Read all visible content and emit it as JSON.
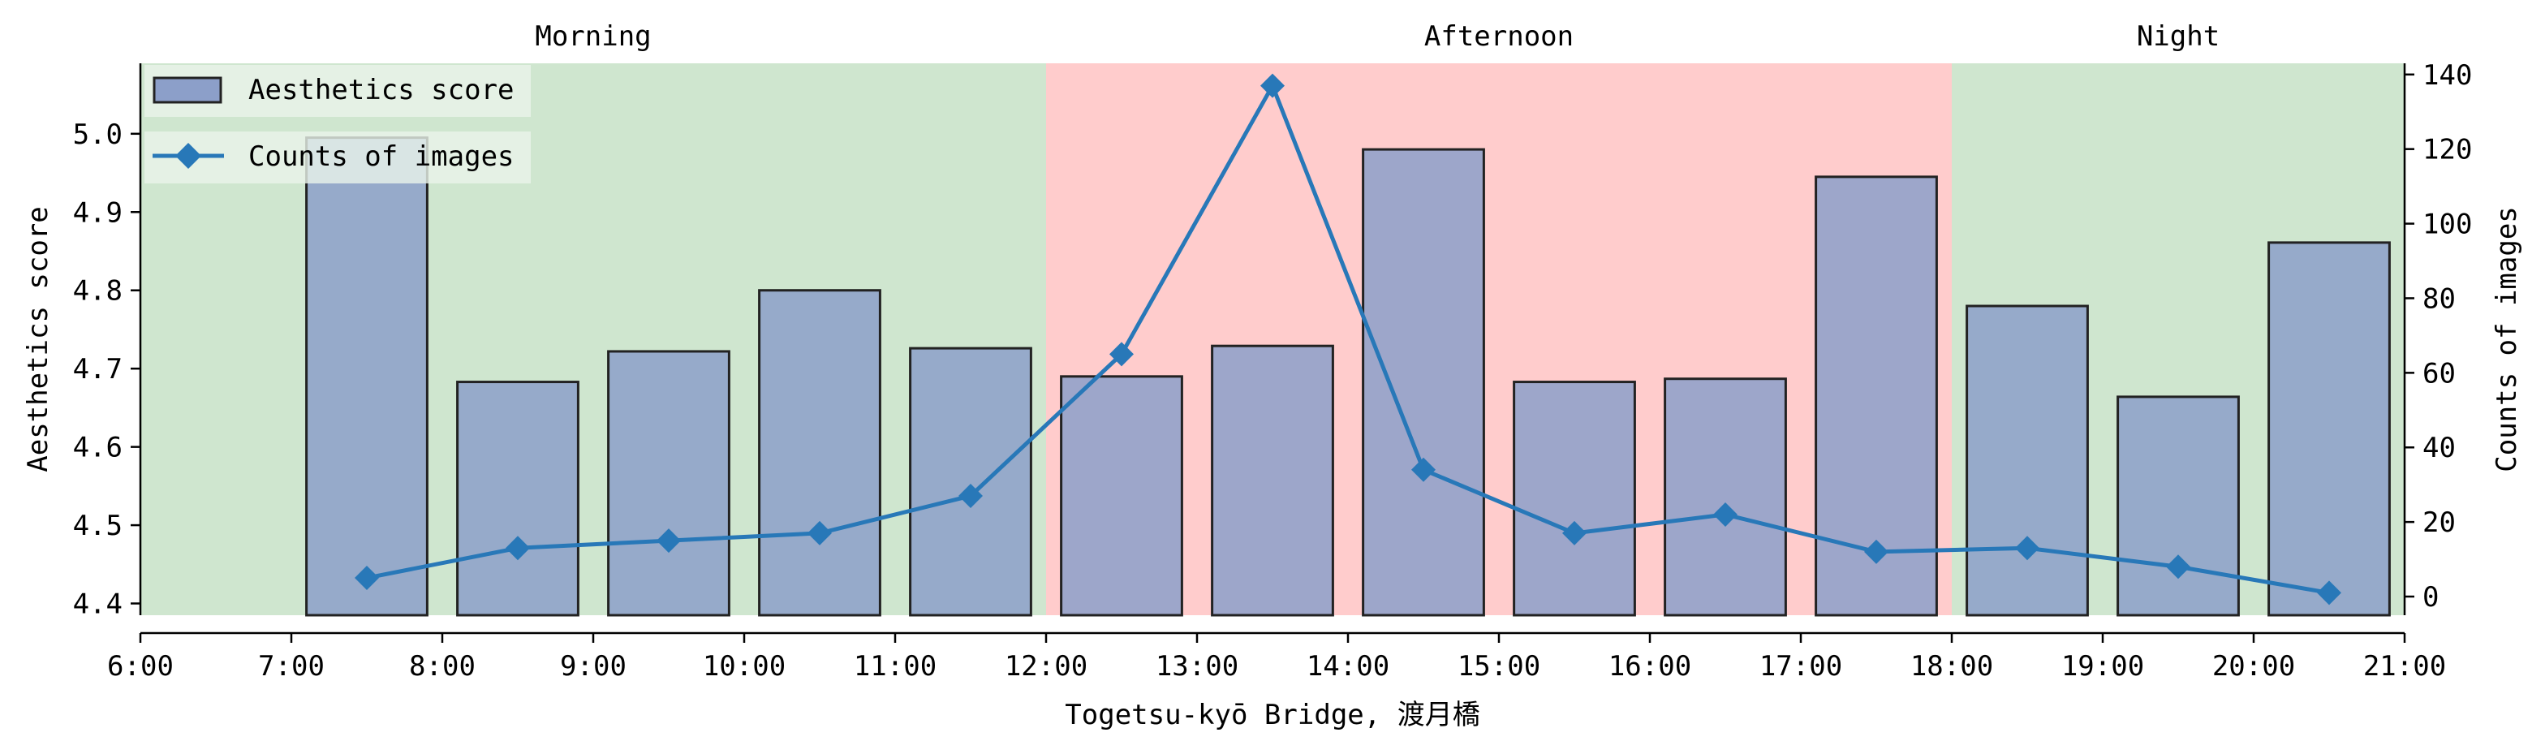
{
  "chart_data": {
    "type": "bar+line",
    "xlabel": "Togetsu-kyō Bridge, 渡月橋",
    "ylabel_left": "Aesthetics score",
    "ylabel_right": "Counts of images",
    "x_ticks": [
      "6:00",
      "7:00",
      "8:00",
      "9:00",
      "10:00",
      "11:00",
      "12:00",
      "13:00",
      "14:00",
      "15:00",
      "16:00",
      "17:00",
      "18:00",
      "19:00",
      "20:00",
      "21:00"
    ],
    "x_range": [
      6,
      21
    ],
    "y_left_ticks": [
      "4.4",
      "4.5",
      "4.6",
      "4.7",
      "4.8",
      "4.9",
      "5.0"
    ],
    "y_left_range": [
      4.385,
      5.09
    ],
    "y_right_ticks": [
      "0",
      "20",
      "40",
      "60",
      "80",
      "100",
      "120",
      "140"
    ],
    "y_right_range": [
      -5,
      143
    ],
    "regions": [
      {
        "label": "Morning",
        "start": 6,
        "end": 12,
        "color": "#cfe6cf"
      },
      {
        "label": "Afternoon",
        "start": 12,
        "end": 18,
        "color": "#ffcccc"
      },
      {
        "label": "Night",
        "start": 18,
        "end": 21,
        "color": "#cfe6cf"
      }
    ],
    "bar_series": {
      "name": "Aesthetics score",
      "color": "#8c9fc9",
      "x": [
        7.5,
        8.5,
        9.5,
        10.5,
        11.5,
        12.5,
        13.5,
        14.5,
        15.5,
        16.5,
        17.5,
        18.5,
        19.5,
        20.5
      ],
      "values": [
        4.995,
        4.683,
        4.722,
        4.8,
        4.726,
        4.69,
        4.729,
        4.98,
        4.683,
        4.687,
        4.945,
        4.78,
        4.664,
        4.861
      ]
    },
    "line_series": {
      "name": "Counts of images",
      "color": "#2878b8",
      "x": [
        7.5,
        8.5,
        9.5,
        10.5,
        11.5,
        12.5,
        13.5,
        14.5,
        15.5,
        16.5,
        17.5,
        18.5,
        19.5,
        20.5
      ],
      "values": [
        5,
        13,
        15,
        17,
        27,
        65,
        137,
        34,
        17,
        22,
        12,
        13,
        8,
        1
      ]
    },
    "legend_placement": "upper-left"
  }
}
